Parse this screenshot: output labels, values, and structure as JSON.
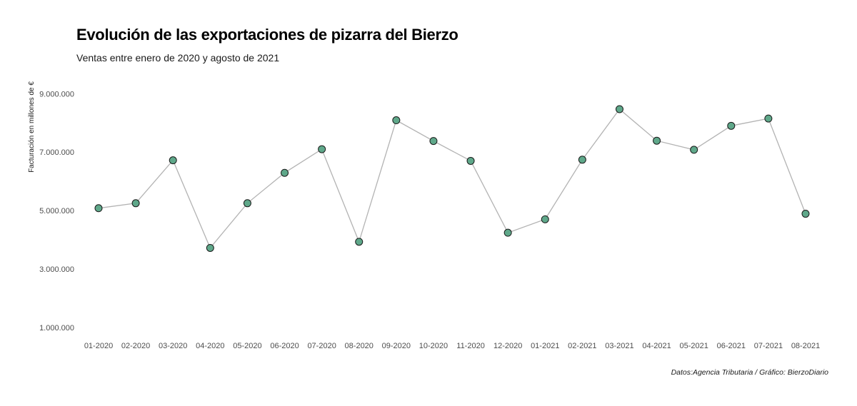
{
  "chart_data": {
    "type": "line",
    "title": "Evolución de las exportaciones de pizarra del Bierzo",
    "subtitle": "Ventas entre enero de 2020 y agosto de 2021",
    "xlabel": "",
    "ylabel": "Facturación en millones de €",
    "caption": "Datos:Agencia Tributaria / Gráfico: BierzoDiario",
    "categories": [
      "01-2020",
      "02-2020",
      "03-2020",
      "04-2020",
      "05-2020",
      "06-2020",
      "07-2020",
      "08-2020",
      "09-2020",
      "10-2020",
      "11-2020",
      "12-2020",
      "01-2021",
      "02-2021",
      "03-2021",
      "04-2021",
      "05-2021",
      "06-2021",
      "07-2021",
      "08-2021"
    ],
    "values": [
      5080000,
      5250000,
      6720000,
      3720000,
      5250000,
      6290000,
      7100000,
      3930000,
      8090000,
      7380000,
      6700000,
      4240000,
      4700000,
      6740000,
      8470000,
      7390000,
      7080000,
      7900000,
      8150000,
      4890000
    ],
    "ylim": [
      800000,
      9300000
    ],
    "yticks": [
      1000000,
      3000000,
      5000000,
      7000000,
      9000000
    ],
    "ytick_labels": [
      "1.000.000",
      "3.000.000",
      "5.000.000",
      "7.000.000",
      "9.000.000"
    ],
    "grid": false,
    "legend": "none",
    "colors": {
      "line": "#b3b3b3",
      "point_fill": "#5fa88a",
      "point_stroke": "#1a1a1a"
    }
  }
}
